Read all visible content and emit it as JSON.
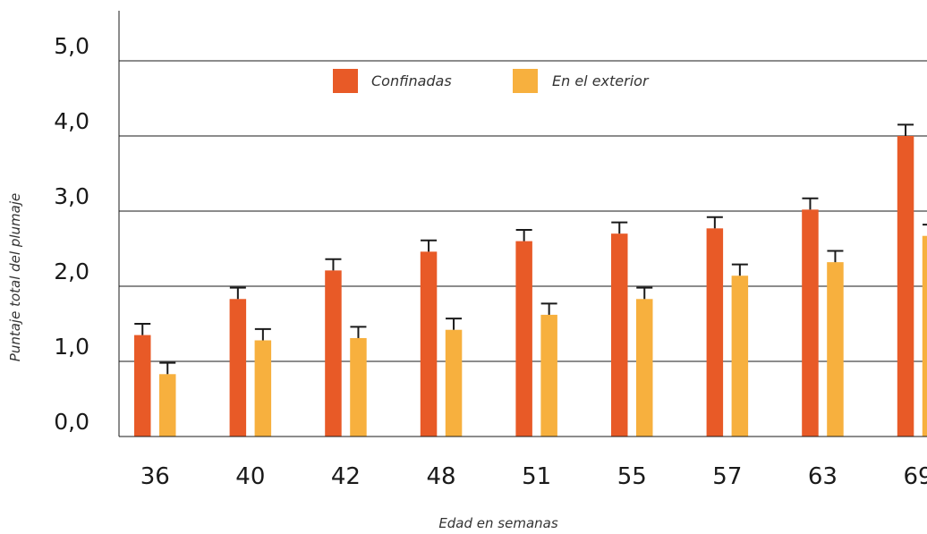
{
  "chart_data": {
    "type": "bar",
    "xlabel": "Edad en semanas",
    "ylabel": "Puntaje total del plumaje",
    "ylim": [
      0,
      5
    ],
    "y_ticks": [
      "0,0",
      "1,0",
      "2,0",
      "3,0",
      "4,0",
      "5,0"
    ],
    "categories": [
      "36",
      "40",
      "42",
      "48",
      "51",
      "55",
      "57",
      "63",
      "69"
    ],
    "series": [
      {
        "name": "Confinadas",
        "color": "#e85a27",
        "values": [
          1.35,
          1.83,
          2.21,
          2.46,
          2.6,
          2.7,
          2.77,
          3.02,
          4.0
        ],
        "errors": [
          0.15,
          0.15,
          0.15,
          0.15,
          0.15,
          0.15,
          0.15,
          0.15,
          0.15
        ]
      },
      {
        "name": "En el exterior",
        "color": "#f7b03e",
        "values": [
          0.83,
          1.28,
          1.31,
          1.42,
          1.62,
          1.83,
          2.14,
          2.32,
          2.67
        ],
        "errors": [
          0.15,
          0.15,
          0.15,
          0.15,
          0.15,
          0.15,
          0.15,
          0.15,
          0.15
        ]
      }
    ],
    "error_bar_color": "#1a1a1a",
    "legend_position": "top-center",
    "grid": true
  }
}
